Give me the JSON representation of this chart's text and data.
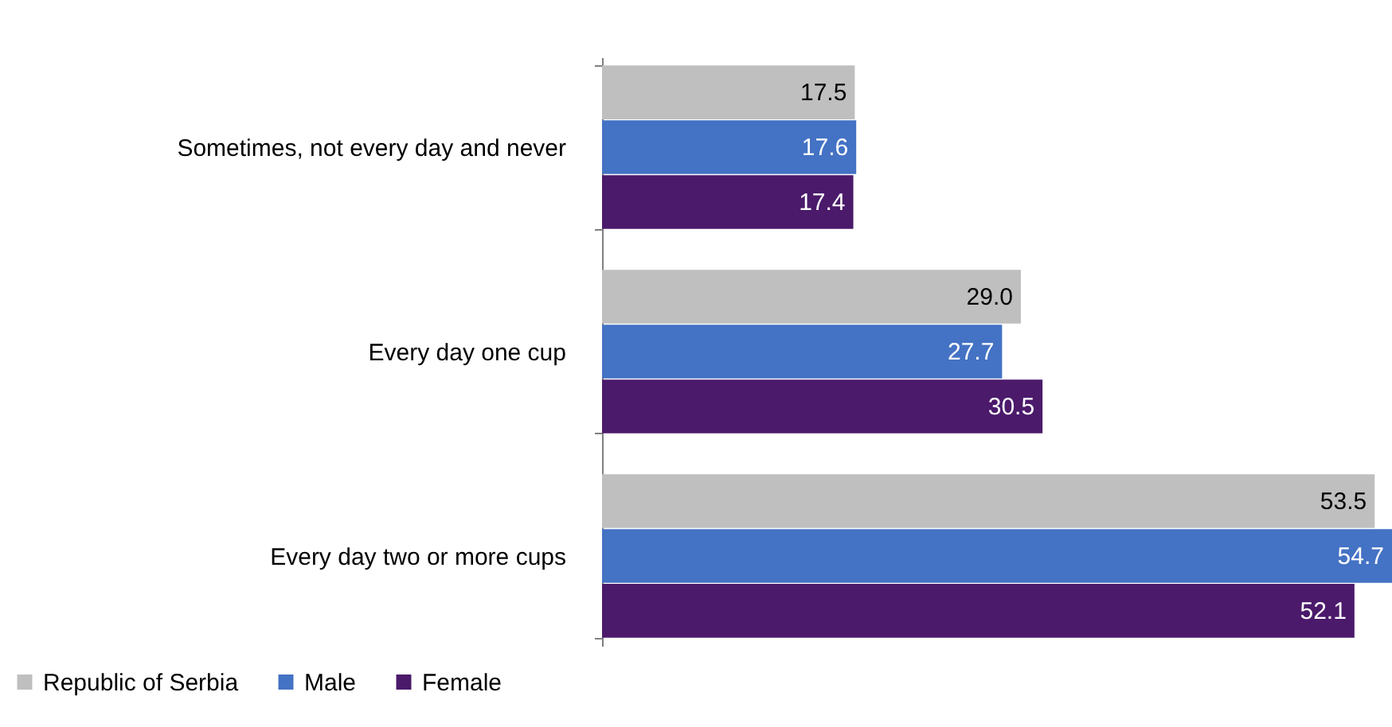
{
  "chart_data": {
    "type": "bar",
    "orientation": "horizontal",
    "categories": [
      "Sometimes, not every day and never",
      "Every day one cup",
      "Every day two or more cups"
    ],
    "series": [
      {
        "name": "Republic of Serbia",
        "color": "#bfbfbf",
        "values": [
          17.5,
          29.0,
          53.5
        ],
        "value_labels": [
          "17.5",
          "29.0",
          "53.5"
        ]
      },
      {
        "name": "Male",
        "color": "#4472c4",
        "values": [
          17.6,
          27.7,
          54.7
        ],
        "value_labels": [
          "17.6",
          "27.7",
          "54.7"
        ]
      },
      {
        "name": "Female",
        "color": "#4b1a6b",
        "values": [
          17.4,
          30.5,
          52.1
        ],
        "value_labels": [
          "17.4",
          "30.5",
          "52.1"
        ]
      }
    ],
    "legend": "bottom left",
    "grid": false
  }
}
